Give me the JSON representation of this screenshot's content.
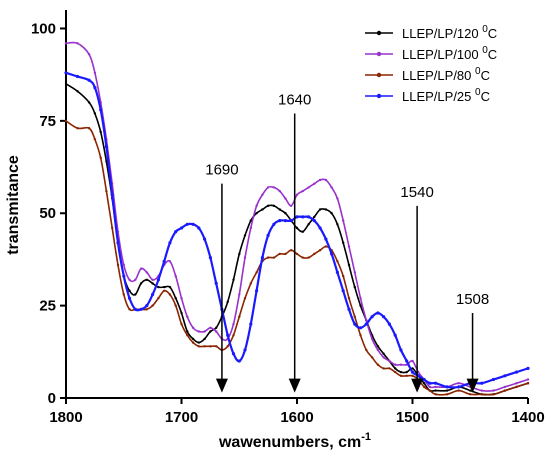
{
  "chart_data": {
    "type": "line",
    "xlabel": "wawenumbers, cm",
    "xlabel_sup": "-1",
    "ylabel": "transmitance",
    "xlim": [
      1800,
      1400
    ],
    "ylim": [
      0,
      105
    ],
    "x_ticks": [
      1800,
      1700,
      1600,
      1500,
      1400
    ],
    "y_ticks": [
      0,
      25,
      50,
      75,
      100
    ],
    "legend_position": "top-right",
    "series": [
      {
        "name": "LLEP/LP/120",
        "superscript": "0",
        "unit": "C",
        "color": "#000000",
        "x": [
          1800,
          1790,
          1780,
          1775,
          1770,
          1765,
          1760,
          1755,
          1750,
          1745,
          1740,
          1735,
          1730,
          1725,
          1720,
          1715,
          1710,
          1705,
          1700,
          1695,
          1690,
          1685,
          1680,
          1675,
          1670,
          1665,
          1660,
          1655,
          1650,
          1645,
          1640,
          1635,
          1630,
          1625,
          1620,
          1615,
          1610,
          1605,
          1600,
          1595,
          1590,
          1585,
          1580,
          1575,
          1570,
          1565,
          1560,
          1555,
          1550,
          1545,
          1540,
          1535,
          1530,
          1525,
          1520,
          1515,
          1510,
          1505,
          1500,
          1495,
          1490,
          1485,
          1480,
          1470,
          1460,
          1450,
          1440,
          1430,
          1420,
          1410,
          1400
        ],
        "values": [
          85,
          83,
          80,
          77,
          72,
          64,
          54,
          42,
          33,
          29,
          28,
          31,
          32,
          31,
          30,
          30,
          30,
          27,
          23,
          18,
          16,
          15,
          16,
          18,
          19,
          22,
          26,
          32,
          39,
          44,
          48,
          50,
          51,
          52,
          52,
          51,
          50,
          48,
          46,
          45,
          47,
          49,
          51,
          51,
          50,
          47,
          42,
          36,
          30,
          25,
          21,
          17,
          14,
          12,
          10,
          8,
          7,
          7,
          8,
          6,
          4,
          2,
          2,
          2,
          3,
          2,
          1,
          1,
          2,
          3,
          4
        ]
      },
      {
        "name": "LLEP/LP/100",
        "superscript": "0",
        "unit": "C",
        "color": "#9932cc",
        "x": [
          1800,
          1790,
          1780,
          1775,
          1770,
          1765,
          1760,
          1755,
          1750,
          1745,
          1740,
          1735,
          1730,
          1725,
          1720,
          1715,
          1710,
          1705,
          1700,
          1695,
          1690,
          1685,
          1680,
          1675,
          1670,
          1665,
          1660,
          1655,
          1650,
          1645,
          1640,
          1635,
          1630,
          1625,
          1620,
          1615,
          1610,
          1605,
          1600,
          1595,
          1590,
          1585,
          1580,
          1575,
          1570,
          1565,
          1560,
          1555,
          1550,
          1545,
          1540,
          1535,
          1530,
          1525,
          1520,
          1515,
          1510,
          1505,
          1500,
          1495,
          1490,
          1485,
          1480,
          1470,
          1460,
          1450,
          1440,
          1430,
          1420,
          1410,
          1400
        ],
        "values": [
          96,
          96,
          93,
          88,
          80,
          70,
          58,
          45,
          36,
          32,
          32,
          35,
          34,
          32,
          33,
          36,
          37,
          33,
          27,
          22,
          19,
          18,
          18,
          19,
          18,
          16,
          16,
          20,
          28,
          38,
          46,
          52,
          55,
          57,
          57,
          56,
          54,
          52,
          55,
          56,
          57,
          58,
          59,
          59,
          57,
          54,
          48,
          41,
          34,
          27,
          21,
          16,
          13,
          11,
          10,
          9,
          9,
          9,
          10,
          7,
          5,
          3,
          3,
          3,
          4,
          3,
          2,
          2,
          3,
          4,
          5
        ]
      },
      {
        "name": "LLEP/LP/80",
        "superscript": "0",
        "unit": "C",
        "color": "#8b2500",
        "x": [
          1800,
          1790,
          1780,
          1775,
          1770,
          1765,
          1760,
          1755,
          1750,
          1745,
          1740,
          1735,
          1730,
          1725,
          1720,
          1715,
          1710,
          1705,
          1700,
          1695,
          1690,
          1685,
          1680,
          1675,
          1670,
          1665,
          1660,
          1655,
          1650,
          1645,
          1640,
          1635,
          1630,
          1625,
          1620,
          1615,
          1610,
          1605,
          1600,
          1595,
          1590,
          1585,
          1580,
          1575,
          1570,
          1565,
          1560,
          1555,
          1550,
          1545,
          1540,
          1535,
          1530,
          1525,
          1520,
          1515,
          1510,
          1505,
          1500,
          1495,
          1490,
          1485,
          1480,
          1470,
          1460,
          1450,
          1440,
          1430,
          1420,
          1410,
          1400
        ],
        "values": [
          75,
          73,
          73,
          70,
          65,
          56,
          46,
          36,
          28,
          24,
          24,
          24,
          24,
          25,
          27,
          29,
          28,
          25,
          20,
          17,
          15,
          14,
          14,
          14,
          14,
          13,
          14,
          17,
          22,
          27,
          31,
          34,
          37,
          38,
          38,
          39,
          39,
          40,
          39,
          38,
          38,
          39,
          40,
          41,
          40,
          37,
          33,
          27,
          22,
          17,
          13,
          11,
          9,
          8,
          8,
          7,
          6,
          6,
          6,
          5,
          3,
          2,
          1,
          1,
          2,
          1,
          1,
          1,
          2,
          3,
          4
        ]
      },
      {
        "name": "LLEP/LP/25",
        "superscript": "0",
        "unit": "C",
        "color": "#1a1aff",
        "x": [
          1800,
          1790,
          1780,
          1775,
          1770,
          1765,
          1760,
          1755,
          1750,
          1745,
          1740,
          1735,
          1730,
          1725,
          1720,
          1715,
          1710,
          1705,
          1700,
          1695,
          1690,
          1685,
          1680,
          1675,
          1670,
          1665,
          1660,
          1655,
          1650,
          1645,
          1640,
          1635,
          1630,
          1625,
          1620,
          1615,
          1610,
          1605,
          1600,
          1595,
          1590,
          1585,
          1580,
          1575,
          1570,
          1565,
          1560,
          1555,
          1550,
          1545,
          1540,
          1535,
          1530,
          1525,
          1520,
          1515,
          1510,
          1505,
          1500,
          1495,
          1490,
          1485,
          1480,
          1470,
          1460,
          1450,
          1440,
          1430,
          1420,
          1410,
          1400
        ],
        "values": [
          88,
          87,
          86,
          84,
          78,
          68,
          55,
          42,
          33,
          27,
          24,
          24,
          25,
          28,
          32,
          37,
          42,
          45,
          46,
          47,
          47,
          46,
          43,
          38,
          31,
          24,
          17,
          12,
          10,
          13,
          20,
          29,
          38,
          44,
          47,
          48,
          48,
          48,
          49,
          49,
          49,
          48,
          46,
          43,
          39,
          34,
          29,
          24,
          20,
          19,
          20,
          22,
          23,
          22,
          20,
          17,
          13,
          10,
          7,
          6,
          5,
          4,
          4,
          3,
          3,
          4,
          4,
          5,
          6,
          7,
          8
        ]
      }
    ],
    "annotations": [
      {
        "label": "1690",
        "x": 1665,
        "y_top": 58,
        "y_bottom": 2
      },
      {
        "label": "1640",
        "x": 1602,
        "y_top": 77,
        "y_bottom": 2
      },
      {
        "label": "1540",
        "x": 1496,
        "y_top": 52,
        "y_bottom": 2
      },
      {
        "label": "1508",
        "x": 1448,
        "y_top": 23,
        "y_bottom": 2
      }
    ]
  }
}
